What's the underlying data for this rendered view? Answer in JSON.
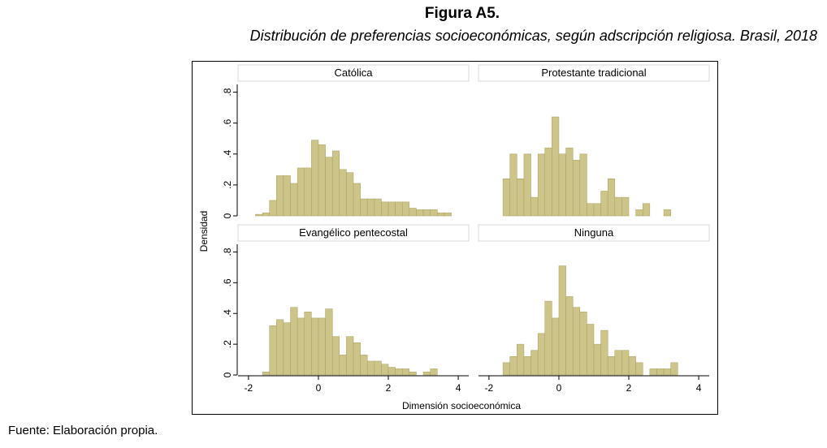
{
  "figure": {
    "title": "Figura A5.",
    "subtitle": "Distribución de preferencias socioeconómicas, según adscripción religiosa. Brasil, 2018",
    "source": "Fuente: Elaboración propia."
  },
  "colors": {
    "bar_fill": "#cdc489",
    "bar_stroke": "#a89f5e",
    "strip_fill": "#ffffff",
    "strip_stroke": "#d9d9d9"
  },
  "chart_data": {
    "type": "bar",
    "subtype": "histogram-facets",
    "xlabel": "Dimensión socioeconómica",
    "ylabel": "Densidad",
    "xlim": [
      -2.3,
      4.3
    ],
    "ylim": [
      0,
      0.85
    ],
    "x_ticks": [
      -2,
      0,
      2,
      4
    ],
    "x_tick_labels": [
      "-2",
      "0",
      "2",
      "4"
    ],
    "y_ticks": [
      0,
      0.2,
      0.4,
      0.6,
      0.8
    ],
    "y_tick_labels": [
      "0",
      ".2",
      ".4",
      ".6",
      ".8"
    ],
    "bin_width": 0.2,
    "panels": [
      {
        "name": "Católica",
        "bins": [
          [
            -1.8,
            0.01
          ],
          [
            -1.6,
            0.02
          ],
          [
            -1.4,
            0.1
          ],
          [
            -1.2,
            0.26
          ],
          [
            -1.0,
            0.26
          ],
          [
            -0.8,
            0.21
          ],
          [
            -0.6,
            0.31
          ],
          [
            -0.4,
            0.31
          ],
          [
            -0.2,
            0.49
          ],
          [
            0.0,
            0.46
          ],
          [
            0.2,
            0.38
          ],
          [
            0.4,
            0.42
          ],
          [
            0.6,
            0.3
          ],
          [
            0.8,
            0.28
          ],
          [
            1.0,
            0.21
          ],
          [
            1.2,
            0.11
          ],
          [
            1.4,
            0.11
          ],
          [
            1.6,
            0.11
          ],
          [
            1.8,
            0.09
          ],
          [
            2.0,
            0.09
          ],
          [
            2.2,
            0.09
          ],
          [
            2.4,
            0.09
          ],
          [
            2.6,
            0.05
          ],
          [
            2.8,
            0.04
          ],
          [
            3.0,
            0.04
          ],
          [
            3.2,
            0.04
          ],
          [
            3.4,
            0.02
          ],
          [
            3.6,
            0.02
          ]
        ]
      },
      {
        "name": "Protestante tradicional",
        "bins": [
          [
            -1.6,
            0.24
          ],
          [
            -1.4,
            0.4
          ],
          [
            -1.2,
            0.24
          ],
          [
            -1.0,
            0.4
          ],
          [
            -0.8,
            0.12
          ],
          [
            -0.6,
            0.4
          ],
          [
            -0.4,
            0.44
          ],
          [
            -0.2,
            0.64
          ],
          [
            0.0,
            0.4
          ],
          [
            0.2,
            0.44
          ],
          [
            0.4,
            0.36
          ],
          [
            0.6,
            0.4
          ],
          [
            0.8,
            0.08
          ],
          [
            1.0,
            0.08
          ],
          [
            1.2,
            0.16
          ],
          [
            1.4,
            0.24
          ],
          [
            1.6,
            0.12
          ],
          [
            1.8,
            0.12
          ],
          [
            2.0,
            0.0
          ],
          [
            2.2,
            0.04
          ],
          [
            2.4,
            0.08
          ],
          [
            2.6,
            0.0
          ],
          [
            2.8,
            0.0
          ],
          [
            3.0,
            0.04
          ]
        ]
      },
      {
        "name": "Evangélico pentecostal",
        "bins": [
          [
            -1.6,
            0.02
          ],
          [
            -1.4,
            0.32
          ],
          [
            -1.2,
            0.36
          ],
          [
            -1.0,
            0.34
          ],
          [
            -0.8,
            0.44
          ],
          [
            -0.6,
            0.37
          ],
          [
            -0.4,
            0.41
          ],
          [
            -0.2,
            0.37
          ],
          [
            0.0,
            0.37
          ],
          [
            0.2,
            0.43
          ],
          [
            0.4,
            0.25
          ],
          [
            0.6,
            0.13
          ],
          [
            0.8,
            0.25
          ],
          [
            1.0,
            0.21
          ],
          [
            1.2,
            0.13
          ],
          [
            1.4,
            0.09
          ],
          [
            1.6,
            0.09
          ],
          [
            1.8,
            0.07
          ],
          [
            2.0,
            0.05
          ],
          [
            2.2,
            0.04
          ],
          [
            2.4,
            0.04
          ],
          [
            2.6,
            0.02
          ],
          [
            2.8,
            0.0
          ],
          [
            3.0,
            0.02
          ],
          [
            3.2,
            0.04
          ],
          [
            3.4,
            0.0
          ]
        ]
      },
      {
        "name": "Ninguna",
        "bins": [
          [
            -1.6,
            0.08
          ],
          [
            -1.4,
            0.12
          ],
          [
            -1.2,
            0.2
          ],
          [
            -1.0,
            0.12
          ],
          [
            -0.8,
            0.16
          ],
          [
            -0.6,
            0.27
          ],
          [
            -0.4,
            0.48
          ],
          [
            -0.2,
            0.37
          ],
          [
            0.0,
            0.71
          ],
          [
            0.2,
            0.51
          ],
          [
            0.4,
            0.44
          ],
          [
            0.6,
            0.41
          ],
          [
            0.8,
            0.33
          ],
          [
            1.0,
            0.2
          ],
          [
            1.2,
            0.29
          ],
          [
            1.4,
            0.12
          ],
          [
            1.6,
            0.16
          ],
          [
            1.8,
            0.16
          ],
          [
            2.0,
            0.12
          ],
          [
            2.2,
            0.08
          ],
          [
            2.4,
            0.0
          ],
          [
            2.6,
            0.04
          ],
          [
            2.8,
            0.04
          ],
          [
            3.0,
            0.04
          ],
          [
            3.2,
            0.08
          ],
          [
            3.4,
            0.0
          ]
        ]
      }
    ]
  }
}
